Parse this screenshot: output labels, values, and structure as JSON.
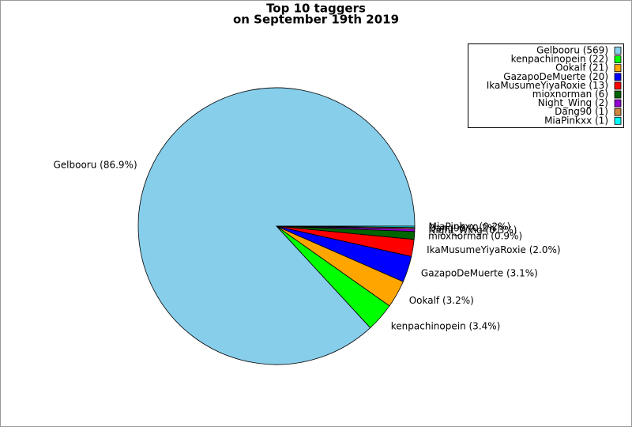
{
  "chart_data": {
    "type": "pie",
    "title": "Top 10 taggers",
    "subtitle": "on September 19th 2019",
    "values": [
      569,
      22,
      21,
      20,
      13,
      6,
      2,
      1,
      1
    ],
    "value_labels": [
      "Gelbooru (86.9%)",
      "kenpachinopein (3.4%)",
      "Ookalf (3.2%)",
      "GazapoDeMuerte (3.1%)",
      "IkaMusumeYiyaRoxie (2.0%)",
      "mioxnorman (0.9%)",
      "Night_Wing (0.3%)",
      "Dang90 (0.2%)",
      "MiaPinkxx (0.2%)"
    ],
    "legend_labels": [
      "Gelbooru (569)",
      "kenpachinopein (22)",
      "Ookalf (21)",
      "GazapoDeMuerte (20)",
      "IkaMusumeYiyaRoxie (13)",
      "mioxnorman (6)",
      "Night_Wing (2)",
      "Dang90 (1)",
      "MiaPinkxx (1)"
    ],
    "colors": [
      "#87ceeb",
      "#00ff00",
      "#ffa500",
      "#0000ff",
      "#ff0000",
      "#006400",
      "#9400d3",
      "#cd853f",
      "#00ffff"
    ],
    "legend_position": "upper right"
  }
}
